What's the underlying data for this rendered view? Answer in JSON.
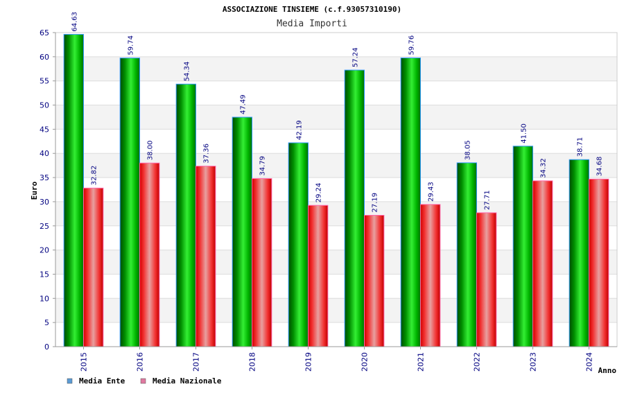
{
  "chart_data": {
    "type": "bar",
    "title": "ASSOCIAZIONE TINSIEME (c.f.93057310190)",
    "subtitle": "Media Importi",
    "xlabel": "Anno",
    "ylabel": "Euro",
    "ylim": [
      0,
      65
    ],
    "ytick_step": 5,
    "categories": [
      "2015",
      "2016",
      "2017",
      "2018",
      "2019",
      "2020",
      "2021",
      "2022",
      "2023",
      "2024"
    ],
    "series": [
      {
        "name": "Media Ente",
        "color": "#00c000",
        "values": [
          64.63,
          59.74,
          54.34,
          47.49,
          42.19,
          57.24,
          59.76,
          38.05,
          41.5,
          38.71
        ],
        "labels": [
          "64.63",
          "59.74",
          "54.34",
          "47.49",
          "42.19",
          "57.24",
          "59.76",
          "38.05",
          "41.50",
          "38.71"
        ]
      },
      {
        "name": "Media Nazionale",
        "color": "#ff0000",
        "values": [
          32.82,
          38.0,
          37.36,
          34.79,
          29.24,
          27.19,
          29.43,
          27.71,
          34.32,
          34.68
        ],
        "labels": [
          "32.82",
          "38.00",
          "37.36",
          "34.79",
          "29.24",
          "27.19",
          "29.43",
          "27.71",
          "34.32",
          "34.68"
        ]
      }
    ],
    "legend": [
      {
        "name": "Media Ente",
        "color": "#5b9bd5"
      },
      {
        "name": "Media Nazionale",
        "color": "#e07aa0"
      }
    ],
    "legend_position": "bottom-left",
    "grid": true
  }
}
